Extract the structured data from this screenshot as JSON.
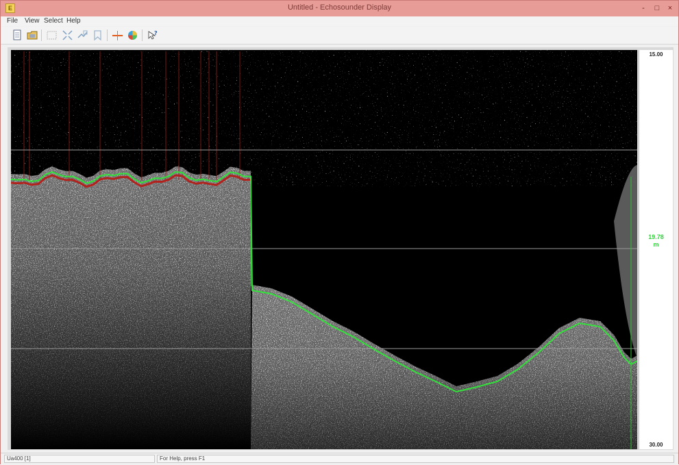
{
  "window": {
    "app_icon": "app-icon",
    "title": "Untitled - Echosounder Display",
    "controls": {
      "minimize": "-",
      "maximize": "□",
      "close": "×"
    }
  },
  "menu": [
    "File",
    "View",
    "Select",
    "Help"
  ],
  "toolbar": {
    "buttons": [
      "new-file-icon",
      "open-file-icon",
      "select-rectangle-icon",
      "zoom-fit-icon",
      "zoom-region-icon",
      "bookmark-icon",
      "bottom-track-icon",
      "color-palette-icon",
      "help-context-icon"
    ]
  },
  "echogram": {
    "scale_top": "15.00",
    "scale_bottom": "30.00",
    "current_depth": "19.78",
    "current_unit": "m",
    "colors": {
      "background": "#000000",
      "bottom_line": "#33e23a",
      "alt_line": "#b2221c",
      "grid": "#9a9a9a"
    },
    "cursor_depth_m": 19.78,
    "depth_range_m": [
      15.0,
      30.0
    ],
    "depth_grid_m": [
      19.0,
      23.0,
      27.0
    ]
  },
  "status": {
    "left": "Ua400 [1]",
    "help": "For Help, press F1"
  }
}
